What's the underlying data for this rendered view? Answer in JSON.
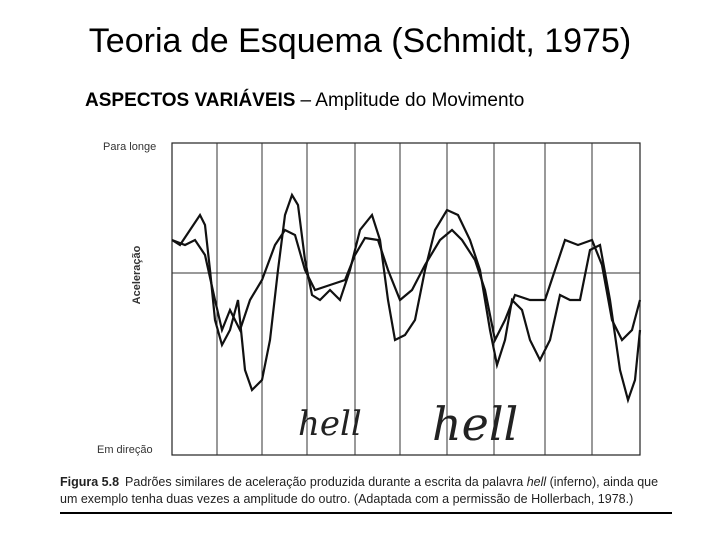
{
  "header": {
    "title": "Teoria de Esquema (Schmidt, 1975)",
    "subtitle": {
      "bold": "ASPECTOS VARIÁVEIS",
      "rest": "– Amplitude do Movimento"
    }
  },
  "figure": {
    "y_top_label": "Para longe",
    "y_axis_label": "Aceleração",
    "y_bottom_label": "Em direção",
    "annotations": [
      "hell",
      "hell"
    ],
    "caption": {
      "label": "Figura 5.8",
      "parts": [
        "Padrões similares de aceleração produzida durante a escrita da palavra",
        "hell",
        "(inferno), ainda que um exemplo tenha duas vezes a amplitude do outro. (Adaptada com a permissão de Hollerbach, 1978.)"
      ]
    }
  }
}
